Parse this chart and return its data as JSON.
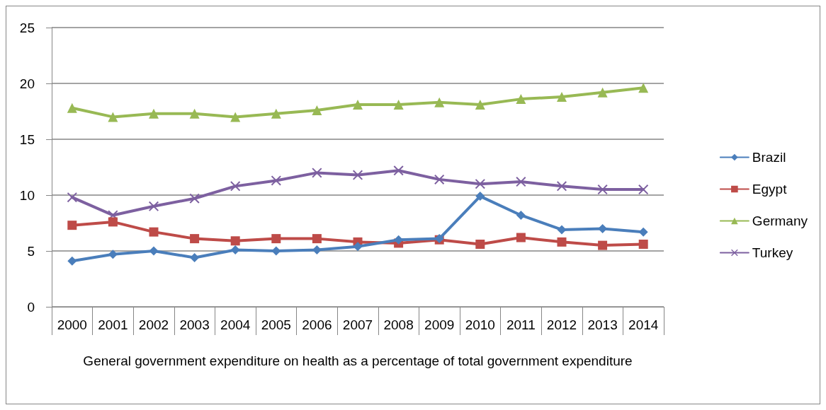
{
  "chart_data": {
    "type": "line",
    "xlabel": "General government expenditure on health as a percentage of total government expenditure",
    "categories": [
      "2000",
      "2001",
      "2002",
      "2003",
      "2004",
      "2005",
      "2006",
      "2007",
      "2008",
      "2009",
      "2010",
      "2011",
      "2012",
      "2013",
      "2014"
    ],
    "series": [
      {
        "name": "Brazil",
        "color": "#4a7ebb",
        "marker": "diamond",
        "values": [
          4.1,
          4.7,
          5.0,
          4.4,
          5.1,
          5.0,
          5.1,
          5.4,
          6.0,
          6.1,
          9.9,
          8.2,
          6.9,
          7.0,
          6.7
        ]
      },
      {
        "name": "Egypt",
        "color": "#be4b48",
        "marker": "square",
        "values": [
          7.3,
          7.6,
          6.7,
          6.1,
          5.9,
          6.1,
          6.1,
          5.8,
          5.7,
          6.0,
          5.6,
          6.2,
          5.8,
          5.5,
          5.6
        ]
      },
      {
        "name": "Germany",
        "color": "#98b954",
        "marker": "triangle",
        "values": [
          17.8,
          17.0,
          17.3,
          17.3,
          17.0,
          17.3,
          17.6,
          18.1,
          18.1,
          18.3,
          18.1,
          18.6,
          18.8,
          19.2,
          19.6
        ]
      },
      {
        "name": "Turkey",
        "color": "#7d60a0",
        "marker": "cross",
        "values": [
          9.8,
          8.2,
          9.0,
          9.7,
          10.8,
          11.3,
          12.0,
          11.8,
          12.2,
          11.4,
          11.0,
          11.2,
          10.8,
          10.5,
          10.5
        ]
      }
    ],
    "ylim": [
      0,
      25
    ],
    "yticks": [
      0,
      5,
      10,
      15,
      20,
      25
    ],
    "grid": "y",
    "legend": "right",
    "line_style": "solid"
  }
}
